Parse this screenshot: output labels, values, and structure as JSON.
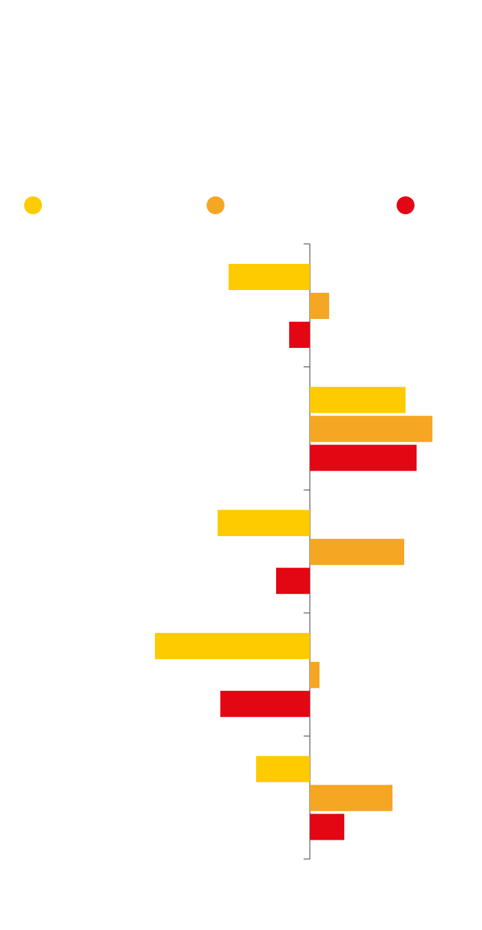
{
  "chart_data": {
    "type": "hbar",
    "categories": [
      null,
      null,
      null,
      null,
      null
    ],
    "series": [
      {
        "color": "#fdcb00",
        "values": [
          -118,
          139,
          -134,
          -225,
          -78
        ]
      },
      {
        "color": "#f5a623",
        "values": [
          28,
          178,
          137,
          14,
          120
        ]
      },
      {
        "color": "#e30613",
        "values": [
          -30,
          155,
          -49,
          -130,
          50
        ]
      }
    ],
    "xlim": [
      -450,
      250
    ],
    "grid": false
  }
}
